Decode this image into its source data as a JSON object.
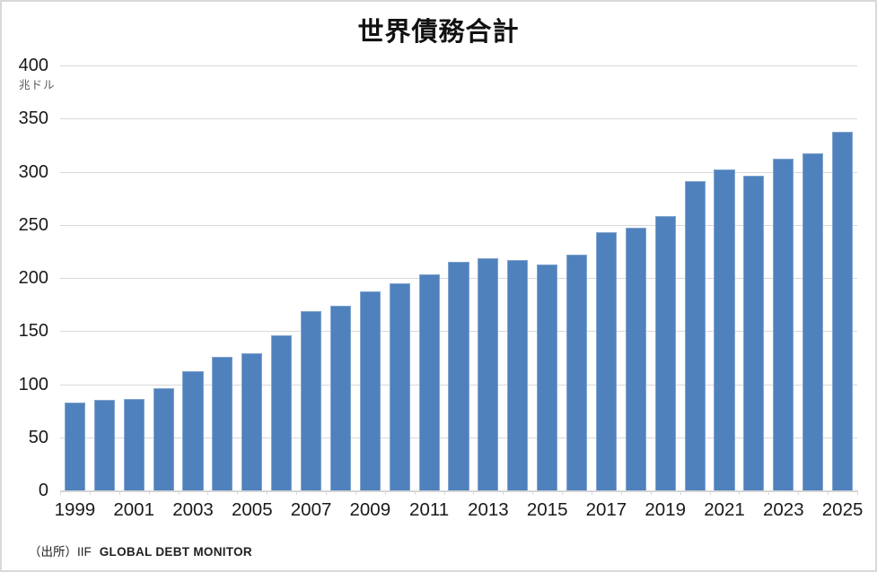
{
  "header": {
    "title": "世界債務合計"
  },
  "y_axis": {
    "unit_label": "兆ドル"
  },
  "footer": {
    "source_prefix": "（出所）IIF",
    "source_name": "GLOBAL DEBT MONITOR"
  },
  "colors": {
    "bar_fill": "#4f81bd",
    "bar_border": "#82a5ce",
    "gridline": "#d9d9d9",
    "axis_text": "#1a1a1a",
    "unit_text": "#595959"
  },
  "chart_data": {
    "type": "bar",
    "title": "世界債務合計",
    "ylabel": "兆ドル",
    "categories": [
      "1999",
      "2000",
      "2001",
      "2002",
      "2003",
      "2004",
      "2005",
      "2006",
      "2007",
      "2008",
      "2009",
      "2010",
      "2011",
      "2012",
      "2013",
      "2014",
      "2015",
      "2016",
      "2017",
      "2018",
      "2019",
      "2020",
      "2021",
      "2022",
      "2023",
      "2024",
      "2025"
    ],
    "values": [
      83,
      85,
      86,
      96,
      112,
      126,
      129,
      146,
      169,
      174,
      187,
      195,
      203,
      215,
      219,
      217,
      213,
      222,
      243,
      247,
      258,
      291,
      302,
      296,
      312,
      317,
      338
    ],
    "ylim": [
      0,
      400
    ],
    "ytick_interval": 50,
    "ytick_labels": [
      "0",
      "50",
      "100",
      "150",
      "200",
      "250",
      "300",
      "350",
      "400"
    ],
    "xtick_labels_shown": [
      "1999",
      "2001",
      "2003",
      "2005",
      "2007",
      "2009",
      "2011",
      "2013",
      "2015",
      "2017",
      "2019",
      "2021",
      "2023",
      "2025"
    ],
    "grid": true,
    "legend": false
  }
}
